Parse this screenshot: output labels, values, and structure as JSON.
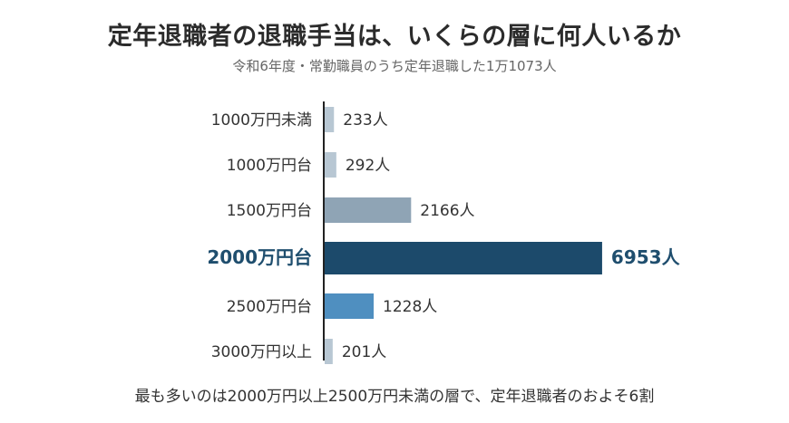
{
  "chart_data": {
    "type": "bar",
    "orientation": "horizontal",
    "title": "定年退職者の退職手当は、いくらの層に何人いるか",
    "subtitle": "令和6年度・常勤職員のうち定年退職した1万1073人",
    "footer": "最も多いのは2000万円以上2500万円未満の層で、定年退職者のおよそ6割",
    "categories": [
      "1000万円未満",
      "1000万円台",
      "1500万円台",
      "2000万円台",
      "2500万円台",
      "3000万円以上"
    ],
    "values": [
      233,
      292,
      2166,
      6953,
      1228,
      201
    ],
    "value_labels": [
      "233人",
      "292人",
      "2166人",
      "6953人",
      "1228人",
      "201人"
    ],
    "highlight_index": 3,
    "colors": [
      "#b8c7d3",
      "#b8c7d3",
      "#8fa4b5",
      "#1c4a6b",
      "#4f8fc0",
      "#b8c7d3"
    ],
    "xlim": [
      0,
      7000
    ],
    "grid": false
  }
}
